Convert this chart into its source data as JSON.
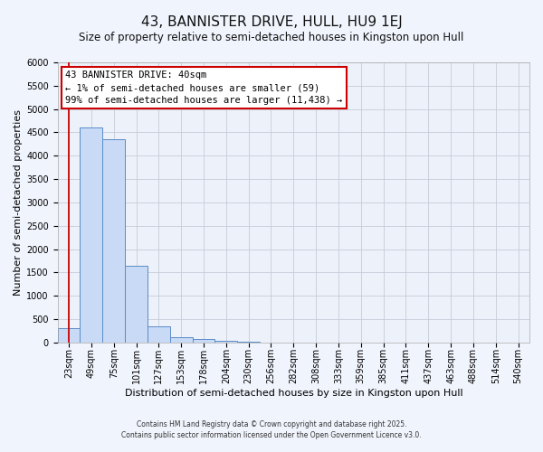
{
  "title": "43, BANNISTER DRIVE, HULL, HU9 1EJ",
  "subtitle": "Size of property relative to semi-detached houses in Kingston upon Hull",
  "xlabel": "Distribution of semi-detached houses by size in Kingston upon Hull",
  "ylabel": "Number of semi-detached properties",
  "bin_labels": [
    "23sqm",
    "49sqm",
    "75sqm",
    "101sqm",
    "127sqm",
    "153sqm",
    "178sqm",
    "204sqm",
    "230sqm",
    "256sqm",
    "282sqm",
    "308sqm",
    "333sqm",
    "359sqm",
    "385sqm",
    "411sqm",
    "437sqm",
    "463sqm",
    "488sqm",
    "514sqm",
    "540sqm"
  ],
  "bar_values": [
    300,
    4600,
    4350,
    1650,
    350,
    120,
    70,
    40,
    10,
    5,
    2,
    1,
    0,
    0,
    0,
    0,
    0,
    0,
    0,
    0,
    0
  ],
  "bar_color": "#c8daf5",
  "bar_edge_color": "#5b8cc8",
  "ylim": [
    0,
    6000
  ],
  "yticks": [
    0,
    500,
    1000,
    1500,
    2000,
    2500,
    3000,
    3500,
    4000,
    4500,
    5000,
    5500,
    6000
  ],
  "annotation_title": "43 BANNISTER DRIVE: 40sqm",
  "annotation_line1": "← 1% of semi-detached houses are smaller (59)",
  "annotation_line2": "99% of semi-detached houses are larger (11,438) →",
  "annotation_box_facecolor": "#ffffff",
  "annotation_box_edgecolor": "#cc0000",
  "red_line_x": 0.5,
  "footer1": "Contains HM Land Registry data © Crown copyright and database right 2025.",
  "footer2": "Contains public sector information licensed under the Open Government Licence v3.0.",
  "fig_facecolor": "#f0f4fc",
  "axes_facecolor": "#edf1fa",
  "grid_color": "#c5ccd8",
  "title_fontsize": 11,
  "subtitle_fontsize": 8.5,
  "axis_label_fontsize": 8,
  "tick_fontsize": 7,
  "annotation_fontsize": 7.5,
  "footer_fontsize": 5.5
}
